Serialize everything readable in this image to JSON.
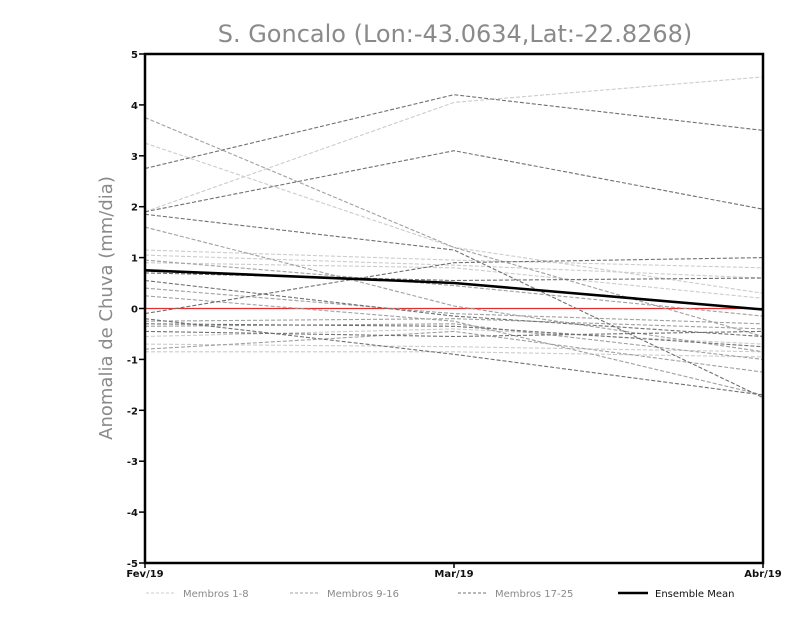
{
  "chart_data": {
    "type": "line",
    "title": "S. Goncalo (Lon:-43.0634,Lat:-22.8268)",
    "ylabel": "Anomalia de Chuva (mm/dia)",
    "xlabel": "",
    "categories": [
      "Fev/19",
      "Mar/19",
      "Abr/19"
    ],
    "ylim": [
      -5,
      5
    ],
    "yticks": [
      -5,
      -4,
      -3,
      -2,
      -1,
      0,
      1,
      2,
      3,
      4,
      5
    ],
    "grid": false,
    "zero_line_color": "#e03030",
    "legend_position": "bottom",
    "legend": [
      {
        "name": "Membros 1-8",
        "style": "dashed",
        "color": "#cccccc"
      },
      {
        "name": "Membros 9-16",
        "style": "dashed",
        "color": "#a0a0a0"
      },
      {
        "name": "Membros 17-25",
        "style": "dashed",
        "color": "#707070"
      },
      {
        "name": "Ensemble Mean",
        "style": "solid",
        "color": "#000000"
      }
    ],
    "series": [
      {
        "group": 1,
        "color": "#cccccc",
        "values": [
          1.9,
          4.05,
          4.55
        ]
      },
      {
        "group": 1,
        "color": "#cccccc",
        "values": [
          3.25,
          1.2,
          0.3
        ]
      },
      {
        "group": 1,
        "color": "#cccccc",
        "values": [
          1.15,
          0.95,
          0.8
        ]
      },
      {
        "group": 1,
        "color": "#cccccc",
        "values": [
          1.05,
          0.85,
          0.6
        ]
      },
      {
        "group": 1,
        "color": "#cccccc",
        "values": [
          0.9,
          0.8,
          0.2
        ]
      },
      {
        "group": 1,
        "color": "#cccccc",
        "values": [
          -0.55,
          -0.4,
          -0.7
        ]
      },
      {
        "group": 1,
        "color": "#cccccc",
        "values": [
          -0.7,
          -0.75,
          -0.85
        ]
      },
      {
        "group": 1,
        "color": "#cccccc",
        "values": [
          -0.85,
          -0.85,
          -0.95
        ]
      },
      {
        "group": 2,
        "color": "#a0a0a0",
        "values": [
          3.75,
          1.2,
          -0.55
        ]
      },
      {
        "group": 2,
        "color": "#a0a0a0",
        "values": [
          1.6,
          0.05,
          -0.85
        ]
      },
      {
        "group": 2,
        "color": "#a0a0a0",
        "values": [
          0.95,
          0.45,
          -0.15
        ]
      },
      {
        "group": 2,
        "color": "#a0a0a0",
        "values": [
          0.4,
          -0.1,
          -0.3
        ]
      },
      {
        "group": 2,
        "color": "#a0a0a0",
        "values": [
          0.25,
          -0.25,
          -1.7
        ]
      },
      {
        "group": 2,
        "color": "#a0a0a0",
        "values": [
          -0.25,
          -0.2,
          -0.4
        ]
      },
      {
        "group": 2,
        "color": "#a0a0a0",
        "values": [
          -0.35,
          -0.3,
          -1.0
        ]
      },
      {
        "group": 2,
        "color": "#a0a0a0",
        "values": [
          -0.8,
          -0.45,
          -1.25
        ]
      },
      {
        "group": 3,
        "color": "#707070",
        "values": [
          2.75,
          4.2,
          3.5
        ]
      },
      {
        "group": 3,
        "color": "#707070",
        "values": [
          1.9,
          3.1,
          1.95
        ]
      },
      {
        "group": 3,
        "color": "#707070",
        "values": [
          1.85,
          1.15,
          -1.75
        ]
      },
      {
        "group": 3,
        "color": "#707070",
        "values": [
          0.7,
          0.55,
          0.6
        ]
      },
      {
        "group": 3,
        "color": "#707070",
        "values": [
          0.55,
          -0.15,
          -0.55
        ]
      },
      {
        "group": 3,
        "color": "#707070",
        "values": [
          -0.1,
          0.9,
          1.0
        ]
      },
      {
        "group": 3,
        "color": "#707070",
        "values": [
          -0.3,
          -0.35,
          -0.75
        ]
      },
      {
        "group": 3,
        "color": "#707070",
        "values": [
          -0.45,
          -0.55,
          -0.45
        ]
      },
      {
        "group": 3,
        "color": "#707070",
        "values": [
          -0.2,
          -0.9,
          -1.7
        ]
      },
      {
        "group": 0,
        "name": "Ensemble Mean",
        "color": "#000000",
        "values": [
          0.75,
          0.5,
          -0.02
        ]
      }
    ]
  }
}
